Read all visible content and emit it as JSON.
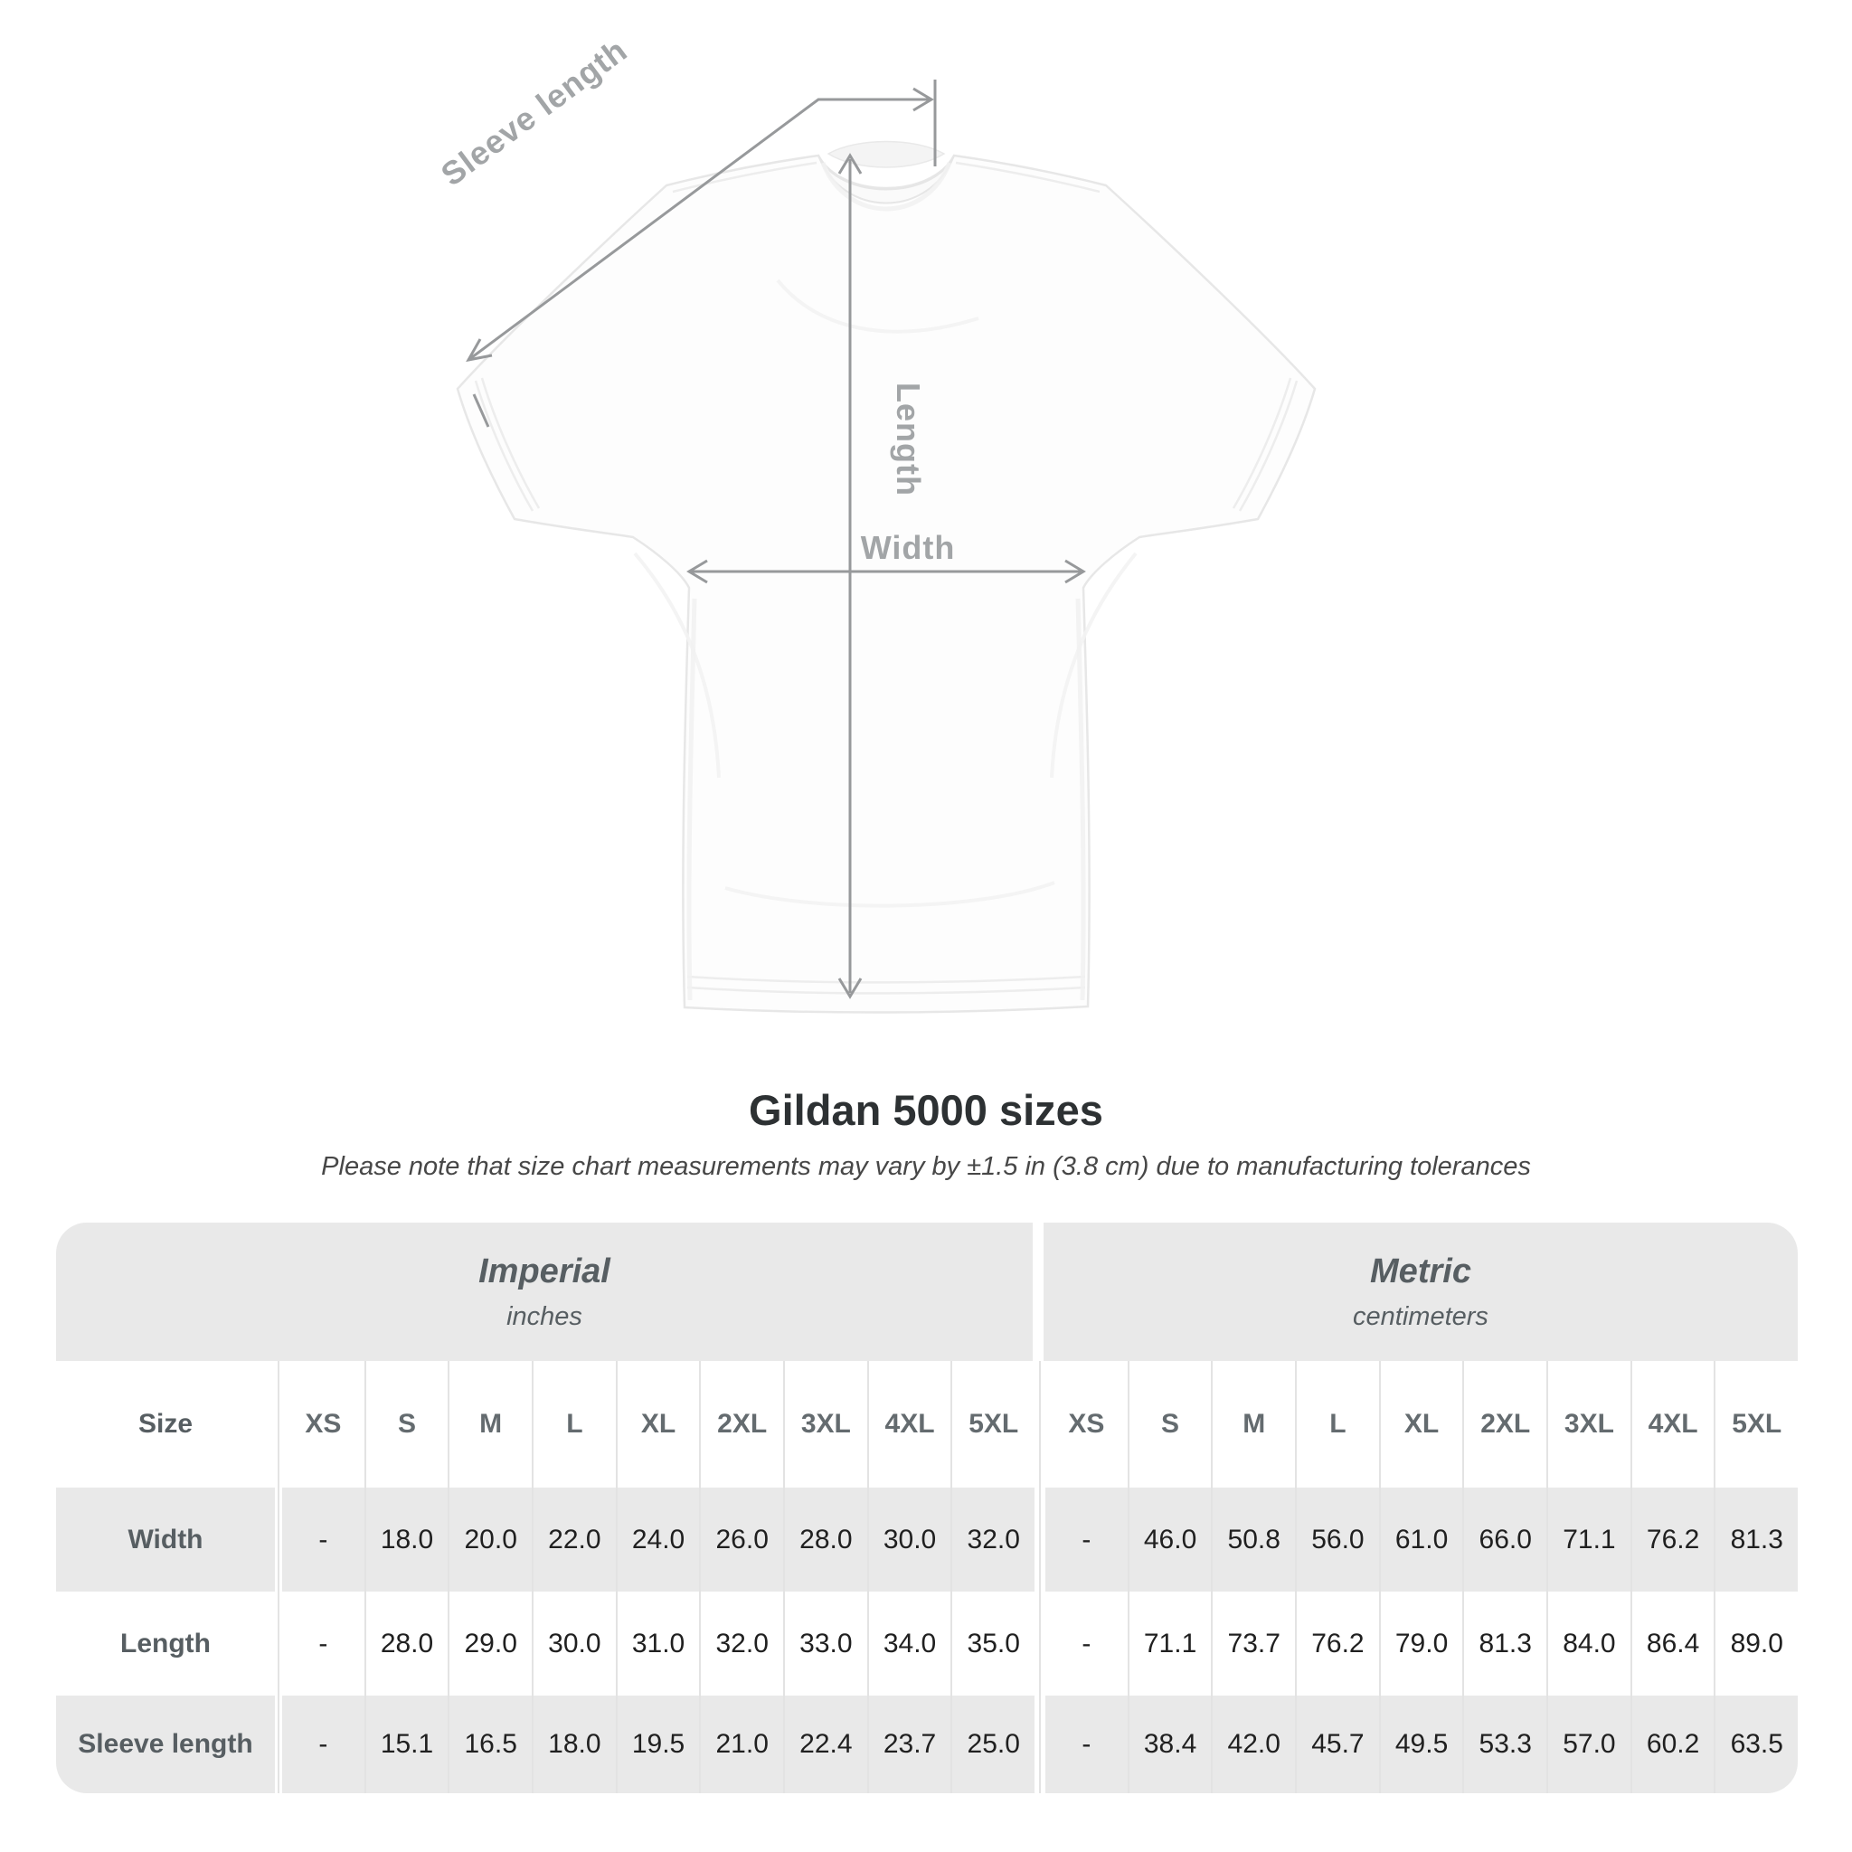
{
  "diagram": {
    "sleeve_length_label": "Sleeve length",
    "length_label": "Length",
    "width_label": "Width"
  },
  "title": "Gildan 5000 sizes",
  "subtitle": "Please note that size chart measurements may vary by ±1.5 in (3.8 cm) due to manufacturing tolerances",
  "table": {
    "groups": [
      {
        "label": "Imperial",
        "sublabel": "inches"
      },
      {
        "label": "Metric",
        "sublabel": "centimeters"
      }
    ],
    "size_header": "Size",
    "sizes": [
      "XS",
      "S",
      "M",
      "L",
      "XL",
      "2XL",
      "3XL",
      "4XL",
      "5XL"
    ],
    "rows": [
      {
        "label": "Width",
        "imperial": [
          "-",
          "18.0",
          "20.0",
          "22.0",
          "24.0",
          "26.0",
          "28.0",
          "30.0",
          "32.0"
        ],
        "metric": [
          "-",
          "46.0",
          "50.8",
          "56.0",
          "61.0",
          "66.0",
          "71.1",
          "76.2",
          "81.3"
        ]
      },
      {
        "label": "Length",
        "imperial": [
          "-",
          "28.0",
          "29.0",
          "30.0",
          "31.0",
          "32.0",
          "33.0",
          "34.0",
          "35.0"
        ],
        "metric": [
          "-",
          "71.1",
          "73.7",
          "76.2",
          "79.0",
          "81.3",
          "84.0",
          "86.4",
          "89.0"
        ]
      },
      {
        "label": "Sleeve length",
        "imperial": [
          "-",
          "15.1",
          "16.5",
          "18.0",
          "19.5",
          "21.0",
          "22.4",
          "23.7",
          "25.0"
        ],
        "metric": [
          "-",
          "38.4",
          "42.0",
          "45.7",
          "49.5",
          "53.3",
          "57.0",
          "60.2",
          "63.5"
        ]
      }
    ]
  },
  "colors": {
    "table_band": "#e9e9e9",
    "separator": "#e3e3e3",
    "header_text": "#575e62",
    "value_text": "#202020",
    "measure_line": "#97999b",
    "title_text": "#2d3133"
  }
}
